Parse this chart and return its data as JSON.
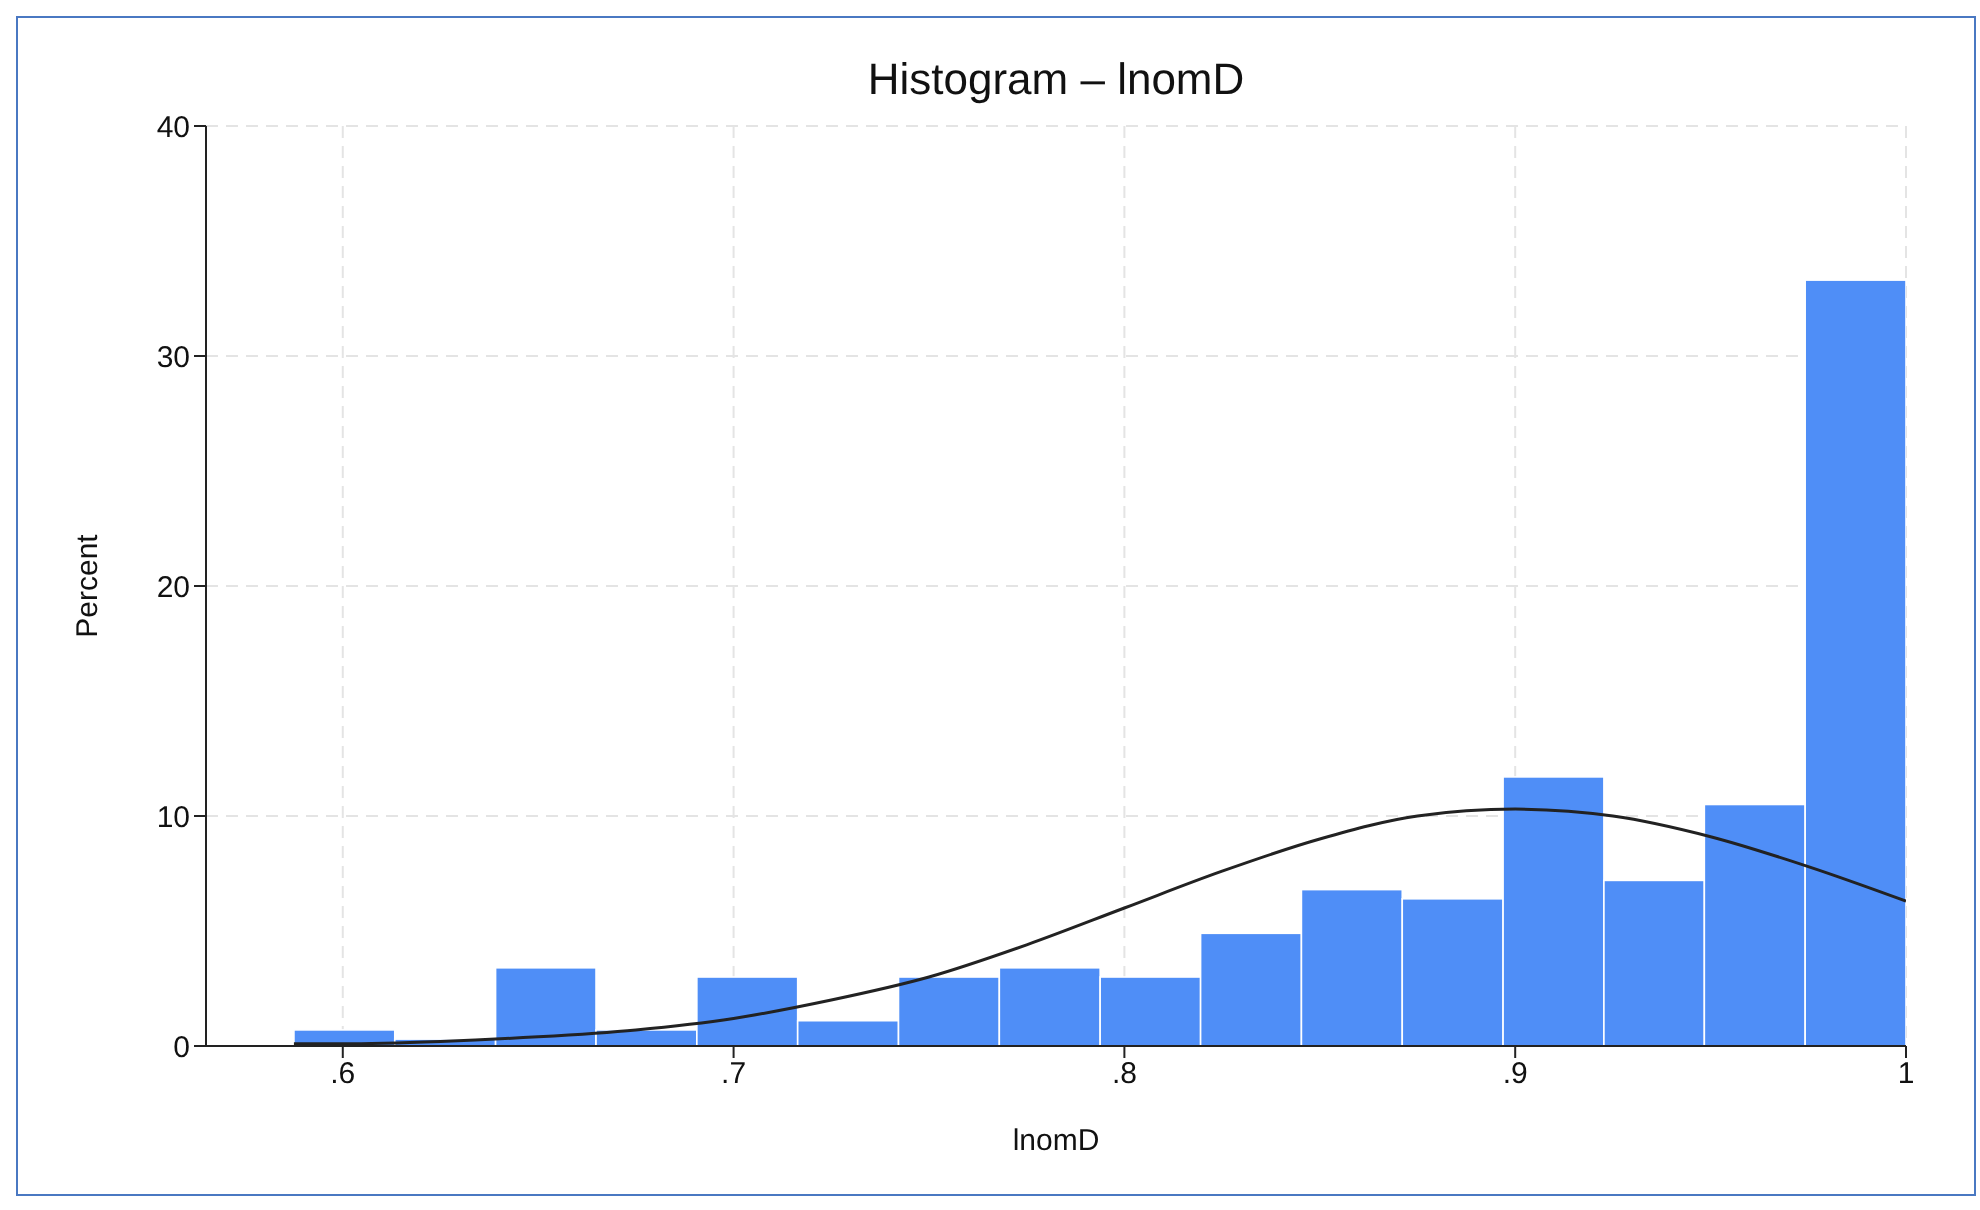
{
  "chart_data": {
    "type": "histogram",
    "title": "Histogram – lnomD",
    "xlabel": "lnomD",
    "ylabel": "Percent",
    "bins": [
      0.5875,
      0.6133,
      0.6391,
      0.6648,
      0.6906,
      0.7164,
      0.7422,
      0.768,
      0.7938,
      0.8195,
      0.8453,
      0.8711,
      0.8969,
      0.9227,
      0.9484,
      0.9742,
      1.0
    ],
    "values": [
      0.7,
      0.3,
      3.4,
      0.7,
      3.0,
      1.1,
      3.0,
      3.4,
      3.0,
      4.9,
      6.8,
      6.4,
      11.7,
      7.2,
      10.5,
      33.3
    ],
    "color": "#4f8ef7",
    "series": [
      {
        "type": "line",
        "color": "#222222",
        "x": [
          0.5875,
          0.6,
          0.625,
          0.65,
          0.675,
          0.7,
          0.725,
          0.75,
          0.775,
          0.8,
          0.825,
          0.85,
          0.875,
          0.9,
          0.925,
          0.95,
          0.975,
          1.0
        ],
        "values": [
          0.1,
          0.1,
          0.2,
          0.4,
          0.7,
          1.2,
          2.0,
          3.0,
          4.4,
          6.0,
          7.6,
          9.0,
          10.0,
          10.3,
          10.0,
          9.1,
          7.8,
          6.3
        ]
      }
    ],
    "xlim": [
      0.565,
      1.0
    ],
    "xticks": [
      {
        "value": 0.6,
        "label": ".6"
      },
      {
        "value": 0.7,
        "label": ".7"
      },
      {
        "value": 0.8,
        "label": ".8"
      },
      {
        "value": 0.9,
        "label": ".9"
      },
      {
        "value": 1,
        "label": "1"
      }
    ],
    "ylim": [
      0,
      40
    ],
    "yticks": [
      0,
      10,
      20,
      30,
      40
    ],
    "grid": true
  }
}
